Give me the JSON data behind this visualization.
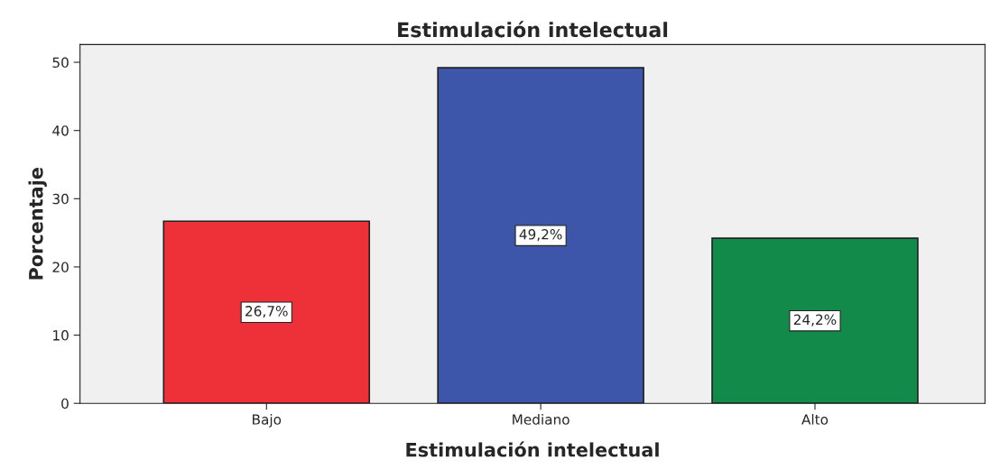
{
  "chart_data": {
    "type": "bar",
    "title": "Estimulación intelectual",
    "xlabel": "Estimulación intelectual",
    "ylabel": "Porcentaje",
    "categories": [
      "Bajo",
      "Mediano",
      "Alto"
    ],
    "values": [
      26.7,
      49.2,
      24.2
    ],
    "colors": [
      "#ee3038",
      "#3d56a9",
      "#118a4a"
    ],
    "value_labels": [
      "26,7%",
      "49,2%",
      "24,2%"
    ],
    "ylim": [
      0,
      52.6
    ],
    "yticks": [
      0,
      10,
      20,
      30,
      40,
      50
    ],
    "grid": false
  }
}
